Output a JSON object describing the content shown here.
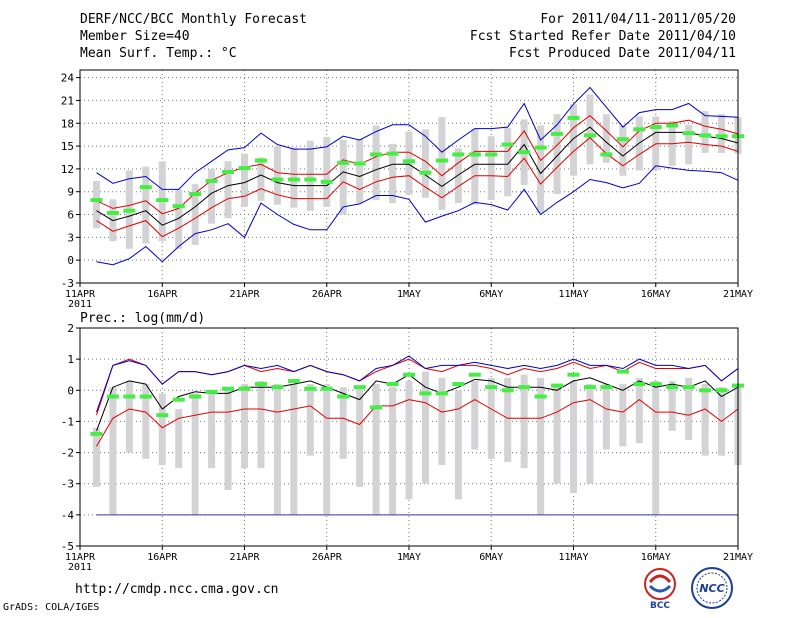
{
  "header": {
    "title": "DERF/NCC/BCC Monthly Forecast",
    "member": "Member Size=40",
    "variable": "Mean Surf. Temp.: °C",
    "period": "For 2011/04/11-2011/05/20",
    "refer": "Fcst Started Refer Date 2011/04/10",
    "produced": "Fcst Produced Date 2011/04/11"
  },
  "footer": {
    "url": "http://cmdp.ncc.cma.gov.cn",
    "credit": "GrADS: COLA/IGES"
  },
  "logos": {
    "left_text": "BCC",
    "right_text": "NCC"
  },
  "colors": {
    "ens_mean": "#000000",
    "sigma": "#e00000",
    "extreme": "#0000cc",
    "box": "#d3d3d5",
    "median": "#44ee44",
    "ref": "#3a3a9a",
    "grid": "#777777"
  },
  "chart_data": [
    {
      "type": "line",
      "name": "temperature",
      "title": "Mean Surf. Temp.: °C",
      "ylim": [
        -3,
        25
      ],
      "yticks": [
        -3,
        0,
        3,
        6,
        9,
        12,
        15,
        18,
        21,
        24
      ],
      "x_day_range": [
        0,
        40
      ],
      "xticks": [
        {
          "day": 0,
          "label": "11APR",
          "sub": "2011"
        },
        {
          "day": 5,
          "label": "16APR"
        },
        {
          "day": 10,
          "label": "21APR"
        },
        {
          "day": 15,
          "label": "26APR"
        },
        {
          "day": 20,
          "label": "1MAY"
        },
        {
          "day": 25,
          "label": "6MAY"
        },
        {
          "day": 30,
          "label": "11MAY"
        },
        {
          "day": 35,
          "label": "16MAY"
        },
        {
          "day": 40,
          "label": "21MAY"
        }
      ],
      "days": [
        1,
        2,
        3,
        4,
        5,
        6,
        7,
        8,
        9,
        10,
        11,
        12,
        13,
        14,
        15,
        16,
        17,
        18,
        19,
        20,
        21,
        22,
        23,
        24,
        25,
        26,
        27,
        28,
        29,
        30,
        31,
        32,
        33,
        34,
        35,
        36,
        37,
        38,
        39,
        40
      ],
      "series": [
        {
          "name": "ensemble mean",
          "values": [
            6.5,
            5.2,
            5.8,
            6.5,
            4.6,
            5.5,
            7.0,
            8.8,
            9.8,
            10.2,
            11.2,
            10.2,
            9.8,
            9.8,
            9.8,
            11.6,
            11.0,
            11.9,
            12.6,
            12.6,
            11.2,
            9.7,
            11.2,
            12.6,
            12.6,
            12.6,
            15.2,
            11.4,
            13.7,
            16.0,
            17.5,
            15.5,
            13.7,
            15.4,
            16.8,
            16.8,
            16.8,
            16.3,
            16.0,
            15.4
          ]
        },
        {
          "name": "mean + sigma",
          "values": [
            7.8,
            6.8,
            7.2,
            7.8,
            6.1,
            6.8,
            8.8,
            10.5,
            11.5,
            12.2,
            12.6,
            11.5,
            11.3,
            11.3,
            11.3,
            13.2,
            12.6,
            13.6,
            14.2,
            14.2,
            13.0,
            11.1,
            12.8,
            14.3,
            14.3,
            14.3,
            17.0,
            13.1,
            15.1,
            17.4,
            19.0,
            17.0,
            14.9,
            17.0,
            18.0,
            18.0,
            18.4,
            17.6,
            17.2,
            16.6
          ]
        },
        {
          "name": "mean - sigma",
          "values": [
            5.2,
            3.8,
            4.5,
            5.2,
            3.1,
            4.2,
            5.5,
            6.9,
            8.1,
            8.4,
            9.4,
            8.6,
            8.1,
            8.1,
            8.1,
            10.3,
            9.3,
            10.3,
            10.9,
            11.1,
            9.6,
            8.2,
            9.7,
            11.1,
            11.1,
            11.0,
            13.4,
            10.0,
            12.2,
            14.3,
            16.1,
            14.0,
            12.4,
            13.9,
            15.3,
            15.3,
            15.5,
            15.2,
            15.0,
            14.3
          ]
        },
        {
          "name": "ensemble max",
          "values": [
            11.5,
            10.1,
            10.7,
            11.0,
            9.3,
            9.3,
            11.5,
            13.0,
            14.5,
            14.8,
            16.7,
            15.2,
            14.6,
            14.6,
            14.9,
            16.3,
            15.8,
            16.9,
            17.8,
            17.8,
            16.3,
            14.2,
            15.8,
            17.3,
            17.3,
            17.5,
            20.6,
            15.8,
            17.8,
            20.5,
            22.7,
            20.1,
            17.5,
            19.4,
            19.8,
            19.8,
            20.6,
            19.0,
            18.9,
            18.8
          ]
        },
        {
          "name": "ensemble min",
          "values": [
            -0.2,
            -0.6,
            0.2,
            1.8,
            -0.2,
            1.8,
            3.5,
            4.0,
            4.8,
            3.0,
            7.5,
            6.0,
            4.7,
            4.0,
            4.0,
            7.0,
            7.4,
            8.5,
            8.5,
            8.0,
            5.0,
            5.8,
            6.5,
            7.6,
            7.3,
            6.6,
            9.3,
            6.0,
            7.6,
            9.0,
            10.6,
            10.2,
            9.5,
            10.1,
            12.4,
            12.1,
            11.8,
            11.7,
            11.5,
            10.5
          ]
        }
      ],
      "box_ranges": [
        [
          4.2,
          10.4
        ],
        [
          2.5,
          8.0
        ],
        [
          1.5,
          11.8
        ],
        [
          2.2,
          12.3
        ],
        [
          2.5,
          13.0
        ],
        [
          1.5,
          9.3
        ],
        [
          2.0,
          10.0
        ],
        [
          4.8,
          12.0
        ],
        [
          5.5,
          13.0
        ],
        [
          7.0,
          14.0
        ],
        [
          7.8,
          13.5
        ],
        [
          7.3,
          15.0
        ],
        [
          6.9,
          14.8
        ],
        [
          6.5,
          15.7
        ],
        [
          7.0,
          16.2
        ],
        [
          6.0,
          15.8
        ],
        [
          7.5,
          15.9
        ],
        [
          7.9,
          17.7
        ],
        [
          7.5,
          15.3
        ],
        [
          8.6,
          16.9
        ],
        [
          8.2,
          17.2
        ],
        [
          6.6,
          18.8
        ],
        [
          7.5,
          14.7
        ],
        [
          7.3,
          17.3
        ],
        [
          7.9,
          16.3
        ],
        [
          8.4,
          17.4
        ],
        [
          9.9,
          18.5
        ],
        [
          6.2,
          17.7
        ],
        [
          8.7,
          19.2
        ],
        [
          11.1,
          20.5
        ],
        [
          12.6,
          21.8
        ],
        [
          12.8,
          19.2
        ],
        [
          11.1,
          17.7
        ],
        [
          11.8,
          18.9
        ],
        [
          11.8,
          18.9
        ],
        [
          12.4,
          18.3
        ],
        [
          12.6,
          17.8
        ],
        [
          14.1,
          19.6
        ],
        [
          14.1,
          19.2
        ],
        [
          14.0,
          18.8
        ]
      ],
      "medians": [
        7.9,
        6.2,
        6.5,
        9.6,
        7.9,
        7.1,
        8.7,
        10.4,
        11.6,
        12.1,
        13.1,
        10.6,
        10.6,
        10.6,
        10.3,
        12.8,
        12.7,
        13.9,
        14.0,
        13.0,
        11.5,
        13.1,
        13.9,
        13.9,
        13.9,
        15.2,
        14.2,
        14.8,
        16.6,
        18.7,
        16.4,
        13.9,
        15.9,
        17.2,
        17.5,
        17.7,
        16.7,
        16.4,
        16.3,
        16.3
      ]
    },
    {
      "type": "line",
      "name": "precipitation",
      "title": "Prec.: log(mm/d)",
      "ylim": [
        -5,
        2
      ],
      "yticks": [
        -5,
        -4,
        -3,
        -2,
        -1,
        0,
        1,
        2
      ],
      "x_day_range": [
        0,
        40
      ],
      "xticks": [
        {
          "day": 0,
          "label": "11APR",
          "sub": "2011"
        },
        {
          "day": 5,
          "label": "16APR"
        },
        {
          "day": 10,
          "label": "21APR"
        },
        {
          "day": 15,
          "label": "26APR"
        },
        {
          "day": 20,
          "label": "1MAY"
        },
        {
          "day": 25,
          "label": "6MAY"
        },
        {
          "day": 30,
          "label": "11MAY"
        },
        {
          "day": 35,
          "label": "16MAY"
        },
        {
          "day": 40,
          "label": "21MAY"
        }
      ],
      "reference_line": -4,
      "days": [
        1,
        2,
        3,
        4,
        5,
        6,
        7,
        8,
        9,
        10,
        11,
        12,
        13,
        14,
        15,
        16,
        17,
        18,
        19,
        20,
        21,
        22,
        23,
        24,
        25,
        26,
        27,
        28,
        29,
        30,
        31,
        32,
        33,
        34,
        35,
        36,
        37,
        38,
        39,
        40
      ],
      "series": [
        {
          "name": "ensemble mean",
          "values": [
            -1.3,
            0.1,
            0.3,
            0.2,
            -0.6,
            -0.2,
            -0.05,
            -0.1,
            -0.1,
            0.1,
            0.1,
            0.1,
            0.2,
            0.3,
            0.1,
            -0.1,
            -0.3,
            0.3,
            0.2,
            0.5,
            0.1,
            -0.1,
            0.1,
            0.35,
            0.3,
            0.1,
            0.1,
            0.1,
            0.0,
            0.3,
            0.4,
            0.2,
            0.0,
            0.3,
            0.1,
            0.2,
            0.1,
            0.3,
            -0.2,
            0.1
          ]
        },
        {
          "name": "mean + sigma",
          "values": [
            -0.8,
            0.8,
            1.0,
            0.8,
            0.2,
            0.6,
            0.6,
            0.5,
            0.6,
            0.8,
            0.6,
            0.7,
            0.6,
            0.8,
            0.6,
            0.5,
            0.3,
            0.6,
            0.8,
            1.0,
            0.7,
            0.6,
            0.8,
            0.8,
            0.7,
            0.5,
            0.7,
            0.6,
            0.7,
            0.9,
            0.7,
            0.8,
            0.6,
            0.9,
            0.7,
            0.7,
            0.7,
            0.8,
            0.3,
            0.7
          ]
        },
        {
          "name": "mean - sigma",
          "values": [
            -1.8,
            -0.9,
            -0.6,
            -0.7,
            -1.2,
            -0.9,
            -0.8,
            -0.7,
            -0.7,
            -0.6,
            -0.6,
            -0.7,
            -0.6,
            -0.5,
            -0.9,
            -0.9,
            -1.1,
            -0.5,
            -0.5,
            -0.3,
            -0.4,
            -0.7,
            -0.6,
            -0.3,
            -0.6,
            -0.9,
            -0.9,
            -0.9,
            -0.7,
            -0.4,
            -0.3,
            -0.6,
            -0.7,
            -0.3,
            -0.7,
            -0.7,
            -0.8,
            -0.6,
            -1.0,
            -0.6
          ]
        },
        {
          "name": "ensemble max",
          "values": [
            -0.7,
            0.8,
            0.95,
            0.8,
            0.2,
            0.6,
            0.6,
            0.5,
            0.6,
            0.8,
            0.7,
            0.8,
            0.6,
            0.8,
            0.6,
            0.5,
            0.3,
            0.7,
            0.8,
            1.1,
            0.7,
            0.8,
            0.8,
            0.9,
            0.8,
            0.7,
            0.8,
            0.7,
            0.8,
            1.0,
            0.8,
            0.8,
            0.7,
            1.0,
            0.8,
            0.8,
            0.7,
            0.8,
            0.3,
            0.7
          ]
        }
      ],
      "box_ranges": [
        [
          -3.1,
          -1.2
        ],
        [
          -2.3,
          0.1
        ],
        [
          -2.0,
          0.3
        ],
        [
          -2.2,
          0.2
        ],
        [
          -2.4,
          -0.1
        ],
        [
          -2.5,
          -0.6
        ],
        [
          -2.0,
          -0.1
        ],
        [
          -2.5,
          -0.1
        ],
        [
          -3.2,
          0.0
        ],
        [
          -2.5,
          0.2
        ],
        [
          -2.5,
          0.3
        ],
        [
          -2.2,
          0.2
        ],
        [
          -2.3,
          0.2
        ],
        [
          -2.1,
          0.2
        ],
        [
          -2.4,
          0.2
        ],
        [
          -2.2,
          0.1
        ],
        [
          -3.1,
          0.1
        ],
        [
          -2.6,
          0.2
        ],
        [
          -3.0,
          0.1
        ],
        [
          -3.5,
          0.3
        ],
        [
          -3.0,
          0.6
        ],
        [
          -2.4,
          0.4
        ],
        [
          -3.5,
          0.0
        ],
        [
          -1.9,
          0.3
        ],
        [
          -2.2,
          0.4
        ],
        [
          -2.3,
          0.4
        ],
        [
          -2.5,
          0.5
        ],
        [
          -2.6,
          0.4
        ],
        [
          -3.0,
          0.2
        ],
        [
          -3.3,
          0.3
        ],
        [
          -3.0,
          0.2
        ],
        [
          -1.9,
          0.2
        ],
        [
          -1.8,
          0.2
        ],
        [
          -1.7,
          0.4
        ],
        [
          -1.7,
          0.3
        ],
        [
          -1.3,
          0.3
        ],
        [
          -1.6,
          0.4
        ],
        [
          -2.1,
          0.2
        ],
        [
          -2.1,
          0.1
        ],
        [
          -2.4,
          0.2
        ]
      ],
      "box_floor_days": [
        2,
        7,
        12,
        13,
        15,
        18,
        19,
        28,
        35
      ],
      "medians": [
        -1.4,
        -0.2,
        -0.2,
        -0.2,
        -0.8,
        -0.3,
        -0.2,
        -0.05,
        0.05,
        0.05,
        0.2,
        0.1,
        0.3,
        0.05,
        0.05,
        -0.2,
        0.1,
        -0.55,
        0.2,
        0.5,
        -0.1,
        -0.1,
        0.2,
        0.5,
        0.1,
        0.0,
        0.1,
        -0.2,
        0.15,
        0.5,
        0.1,
        0.1,
        0.6,
        0.2,
        0.2,
        0.1,
        0.1,
        0.0,
        0.0,
        0.15
      ]
    }
  ]
}
